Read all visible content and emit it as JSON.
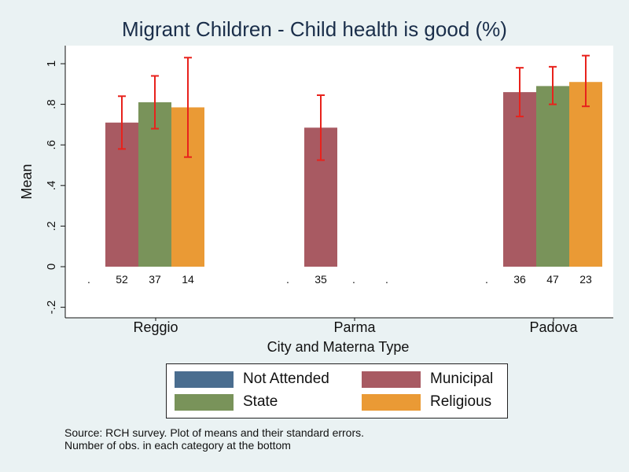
{
  "chart_data": {
    "type": "bar",
    "title": "Migrant Children - Child health is good (%)",
    "xlabel": "City and Materna Type",
    "ylabel": "Mean",
    "ylim": [
      -0.25,
      1.05
    ],
    "yticks": [
      -0.2,
      0,
      0.2,
      0.4,
      0.6,
      0.8,
      1
    ],
    "ytick_labels": [
      "-.2",
      "0",
      ".2",
      ".4",
      ".6",
      ".8",
      "1"
    ],
    "categories": [
      "Reggio",
      "Parma",
      "Padova"
    ],
    "series": [
      {
        "name": "Not Attended",
        "color": "#4a6d8f",
        "values": [
          null,
          null,
          null
        ],
        "err_low": [
          null,
          null,
          null
        ],
        "err_high": [
          null,
          null,
          null
        ],
        "n": [
          ".",
          ".",
          "."
        ]
      },
      {
        "name": "Municipal",
        "color": "#a85a62",
        "values": [
          0.71,
          0.685,
          0.86
        ],
        "err_low": [
          0.58,
          0.525,
          0.74
        ],
        "err_high": [
          0.84,
          0.845,
          0.98
        ],
        "n": [
          "52",
          "35",
          "36"
        ]
      },
      {
        "name": "State",
        "color": "#79935a",
        "values": [
          0.81,
          null,
          0.89
        ],
        "err_low": [
          0.68,
          null,
          0.8
        ],
        "err_high": [
          0.94,
          null,
          0.985
        ],
        "n": [
          "37",
          ".",
          "47"
        ]
      },
      {
        "name": "Religious",
        "color": "#ea9a35",
        "values": [
          0.785,
          null,
          0.91
        ],
        "err_low": [
          0.54,
          null,
          0.79
        ],
        "err_high": [
          1.03,
          null,
          1.04
        ],
        "n": [
          "14",
          ".",
          "23"
        ]
      }
    ],
    "error_bar_color": "#e8221c",
    "legend_position": "bottom",
    "grid": false
  },
  "notes": {
    "line1": "Source: RCH survey. Plot of means and their standard errors.",
    "line2": "Number of obs. in each category at the bottom"
  }
}
